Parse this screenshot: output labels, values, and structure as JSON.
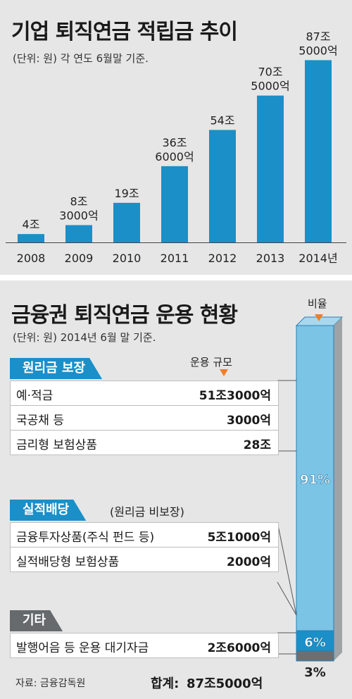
{
  "top": {
    "title": "기업 퇴직연금 적립금 추이",
    "subtitle": "(단위: 원) 각 연도 6월말 기준.",
    "color": "#1b8fc7"
  },
  "bottom": {
    "title": "금융권 퇴직연금 운용 현황",
    "subtitle": "(단위: 원) 2014년 6월 말 기준.",
    "scale_header": "운용 규모",
    "ratio_header": "비율",
    "categories": [
      {
        "label": "원리금 보장",
        "note": "",
        "items": [
          {
            "label": "예·적금",
            "value": "51조3000억"
          },
          {
            "label": "국공채 등",
            "value": "3000억"
          },
          {
            "label": "금리형 보험상품",
            "value": "28조"
          }
        ]
      },
      {
        "label": "실적배당",
        "note": "(원리금 비보장)",
        "items": [
          {
            "label": "금융투자상품(주식 펀드 등)",
            "value": "5조1000억"
          },
          {
            "label": "실적배당형 보험상품",
            "value": "2000억"
          }
        ]
      },
      {
        "label": "기타",
        "note": "",
        "items": [
          {
            "label": "발행어음 등 운용 대기자금",
            "value": "2조6000억"
          }
        ]
      }
    ],
    "source": "자료: 금융감독원",
    "total_label": "합계:",
    "total_value": "87조5000억"
  },
  "chart_data": [
    {
      "type": "bar",
      "title": "기업 퇴직연금 적립금 추이",
      "subtitle": "(단위: 원) 각 연도 6월말 기준.",
      "categories": [
        "2008",
        "2009",
        "2010",
        "2011",
        "2012",
        "2013",
        "2014년"
      ],
      "values": [
        4,
        8.3,
        19,
        36.6,
        54,
        70.5,
        87.5
      ],
      "data_labels": [
        [
          "4조"
        ],
        [
          "8조",
          "3000억"
        ],
        [
          "19조"
        ],
        [
          "36조",
          "6000억"
        ],
        [
          "54조"
        ],
        [
          "70조",
          "5000억"
        ],
        [
          "87조",
          "5000억"
        ]
      ],
      "unit": "조원",
      "ylim": [
        0,
        90
      ],
      "color": "#1b8fc7",
      "grid": false
    },
    {
      "type": "bar",
      "subtype": "stacked-100",
      "title": "금융권 퇴직연금 운용 현황",
      "xlabel": "",
      "ylabel": "비율",
      "categories": [
        "원리금 보장",
        "실적배당",
        "기타"
      ],
      "values": [
        91,
        6,
        3
      ],
      "labels": [
        "91%",
        "6%",
        "3%"
      ],
      "colors": [
        "#7cc4e6",
        "#1b8fc7",
        "#6b6f72"
      ]
    }
  ]
}
